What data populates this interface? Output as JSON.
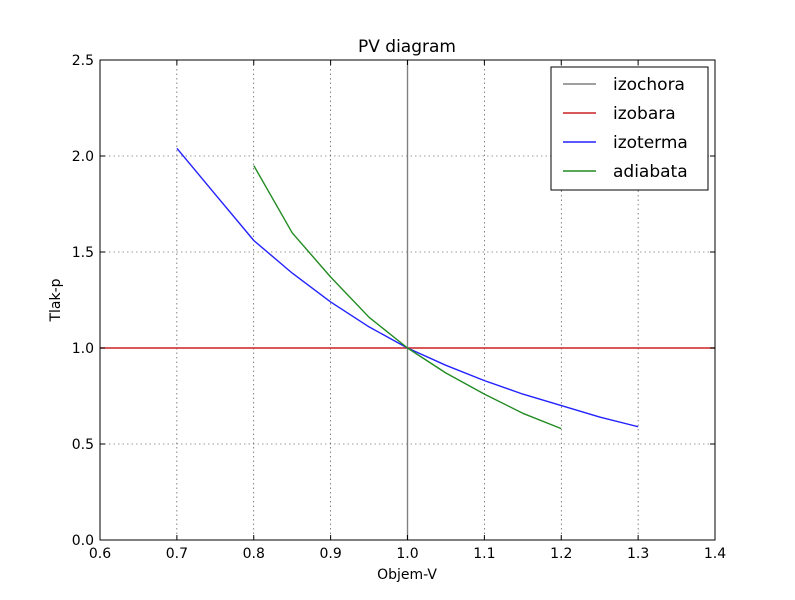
{
  "chart_data": {
    "type": "line",
    "title": "PV diagram",
    "xlabel": "Objem-V",
    "ylabel": "Tlak-p",
    "xlim": [
      0.6,
      1.4
    ],
    "ylim": [
      0.0,
      2.5
    ],
    "xticks": [
      "0.6",
      "0.7",
      "0.8",
      "0.9",
      "1.0",
      "1.1",
      "1.2",
      "1.3",
      "1.4"
    ],
    "yticks": [
      "0.0",
      "0.5",
      "1.0",
      "1.5",
      "2.0",
      "2.5"
    ],
    "grid": true,
    "legend_position": "top-right",
    "series": [
      {
        "name": "izochora",
        "color": "#808080",
        "shape": "vertical line at x = 1.0",
        "x": [
          1.0,
          1.0
        ],
        "y": [
          0.0,
          2.5
        ]
      },
      {
        "name": "izobara",
        "color": "#cc2222",
        "shape": "horizontal line at y = 1.0",
        "x": [
          0.6,
          1.4
        ],
        "y": [
          1.0,
          1.0
        ]
      },
      {
        "name": "izoterma",
        "color": "#2222ff",
        "x": [
          0.7,
          0.75,
          0.8,
          0.85,
          0.9,
          0.95,
          1.0,
          1.05,
          1.1,
          1.15,
          1.2,
          1.25,
          1.3
        ],
        "y": [
          2.04,
          1.8,
          1.56,
          1.39,
          1.24,
          1.11,
          1.0,
          0.91,
          0.83,
          0.76,
          0.7,
          0.64,
          0.59
        ]
      },
      {
        "name": "adiabata",
        "color": "#228b22",
        "x": [
          0.8,
          0.85,
          0.9,
          0.95,
          1.0,
          1.05,
          1.1,
          1.15,
          1.2
        ],
        "y": [
          1.95,
          1.6,
          1.37,
          1.16,
          1.0,
          0.87,
          0.76,
          0.66,
          0.58
        ]
      }
    ]
  }
}
